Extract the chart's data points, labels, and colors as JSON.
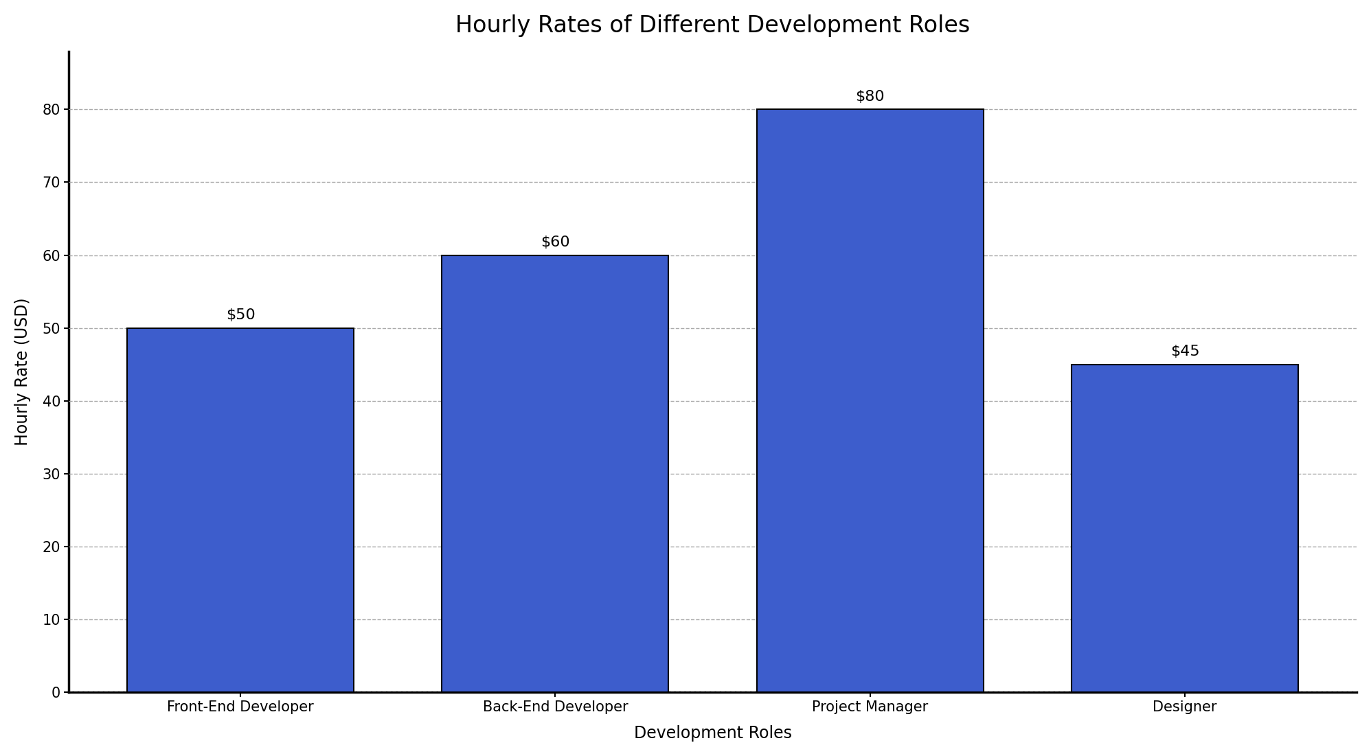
{
  "title": "Hourly Rates of Different Development Roles",
  "xlabel": "Development Roles",
  "ylabel": "Hourly Rate (USD)",
  "categories": [
    "Front-End Developer",
    "Back-End Developer",
    "Project Manager",
    "Designer"
  ],
  "values": [
    50,
    60,
    80,
    45
  ],
  "bar_color": "#3D5DCC",
  "bar_edgecolor": "#000000",
  "bar_linewidth": 1.5,
  "bar_width": 0.72,
  "ylim": [
    0,
    88
  ],
  "yticks": [
    0,
    10,
    20,
    30,
    40,
    50,
    60,
    70,
    80
  ],
  "grid_color": "#AAAAAA",
  "grid_linestyle": "--",
  "grid_linewidth": 1.0,
  "grid_alpha": 1.0,
  "background_color": "#FFFFFF",
  "title_fontsize": 24,
  "axis_label_fontsize": 17,
  "tick_fontsize": 15,
  "annotation_fontsize": 16,
  "spine_color": "#000000",
  "spine_linewidth": 2.5
}
